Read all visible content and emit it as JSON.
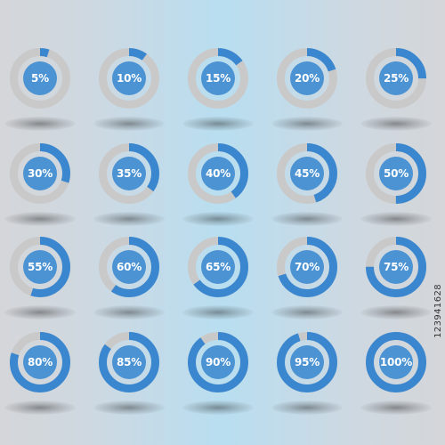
{
  "colors": {
    "track": "#c9c9c9",
    "progress": "#3a87cf",
    "center": "#4b93d3",
    "label": "#ffffff"
  },
  "indicators": [
    {
      "label": "5%",
      "percent": 5
    },
    {
      "label": "10%",
      "percent": 10
    },
    {
      "label": "15%",
      "percent": 15
    },
    {
      "label": "20%",
      "percent": 20
    },
    {
      "label": "25%",
      "percent": 25
    },
    {
      "label": "30%",
      "percent": 30
    },
    {
      "label": "35%",
      "percent": 35
    },
    {
      "label": "40%",
      "percent": 40
    },
    {
      "label": "45%",
      "percent": 45
    },
    {
      "label": "50%",
      "percent": 50
    },
    {
      "label": "55%",
      "percent": 55
    },
    {
      "label": "60%",
      "percent": 60
    },
    {
      "label": "65%",
      "percent": 65
    },
    {
      "label": "70%",
      "percent": 70
    },
    {
      "label": "75%",
      "percent": 75
    },
    {
      "label": "80%",
      "percent": 80
    },
    {
      "label": "85%",
      "percent": 85
    },
    {
      "label": "90%",
      "percent": 90
    },
    {
      "label": "95%",
      "percent": 95
    },
    {
      "label": "100%",
      "percent": 100
    }
  ],
  "watermark": {
    "text": "123941628"
  }
}
